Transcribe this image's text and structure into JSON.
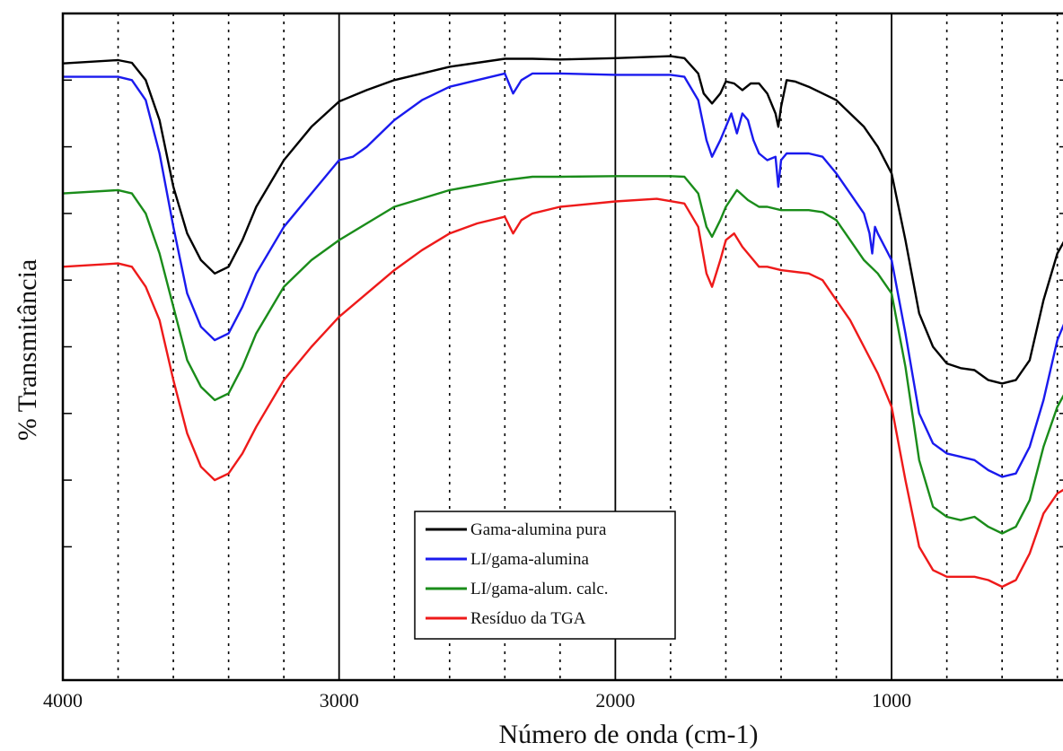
{
  "chart_data": {
    "type": "line",
    "xlabel": "Número de onda (cm-1)",
    "ylabel": "% Transmitância",
    "x_reversed": true,
    "xlim": [
      4000,
      360
    ],
    "ylim": [
      0,
      100
    ],
    "x_ticks": [
      4000,
      3000,
      2000,
      1000
    ],
    "x_tick_labels": [
      "4000",
      "3000",
      "2000",
      "1000"
    ],
    "x_minor_dotted": [
      3800,
      3600,
      3400,
      3200,
      2800,
      2600,
      2400,
      2200,
      1800,
      1600,
      1400,
      1200,
      800,
      600,
      400
    ],
    "y_ticks": [
      20,
      30,
      40,
      50,
      60,
      70,
      80,
      90
    ],
    "grid": "vertical",
    "legend_position": "center-bottom",
    "series": [
      {
        "name": "Gama-alumina pura",
        "color": "#000000",
        "points": [
          [
            4000,
            92.5
          ],
          [
            3800,
            93.0
          ],
          [
            3750,
            92.6
          ],
          [
            3700,
            90.0
          ],
          [
            3650,
            84.0
          ],
          [
            3600,
            74.0
          ],
          [
            3550,
            67.0
          ],
          [
            3500,
            63.0
          ],
          [
            3450,
            61.0
          ],
          [
            3400,
            62.0
          ],
          [
            3350,
            66.0
          ],
          [
            3300,
            71.0
          ],
          [
            3200,
            78.0
          ],
          [
            3100,
            83.0
          ],
          [
            3000,
            86.8
          ],
          [
            2900,
            88.5
          ],
          [
            2800,
            90.0
          ],
          [
            2600,
            92.0
          ],
          [
            2400,
            93.2
          ],
          [
            2300,
            93.2
          ],
          [
            2200,
            93.1
          ],
          [
            2000,
            93.3
          ],
          [
            1800,
            93.6
          ],
          [
            1750,
            93.3
          ],
          [
            1700,
            91.0
          ],
          [
            1680,
            88.0
          ],
          [
            1650,
            86.5
          ],
          [
            1620,
            88.0
          ],
          [
            1600,
            89.8
          ],
          [
            1570,
            89.5
          ],
          [
            1540,
            88.5
          ],
          [
            1510,
            89.5
          ],
          [
            1480,
            89.5
          ],
          [
            1450,
            88.0
          ],
          [
            1420,
            85.0
          ],
          [
            1410,
            83.0
          ],
          [
            1400,
            86.0
          ],
          [
            1380,
            90.0
          ],
          [
            1350,
            89.8
          ],
          [
            1300,
            89.0
          ],
          [
            1200,
            87.0
          ],
          [
            1100,
            83.0
          ],
          [
            1050,
            80.0
          ],
          [
            1000,
            76.0
          ],
          [
            950,
            66.0
          ],
          [
            900,
            55.0
          ],
          [
            850,
            50.0
          ],
          [
            800,
            47.5
          ],
          [
            750,
            46.8
          ],
          [
            700,
            46.5
          ],
          [
            650,
            45.0
          ],
          [
            600,
            44.5
          ],
          [
            550,
            45.0
          ],
          [
            500,
            48.0
          ],
          [
            450,
            57.0
          ],
          [
            400,
            64.0
          ],
          [
            360,
            67.0
          ]
        ]
      },
      {
        "name": "LI/gama-alumina",
        "color": "#1a1aee",
        "points": [
          [
            4000,
            90.5
          ],
          [
            3800,
            90.5
          ],
          [
            3750,
            90.0
          ],
          [
            3700,
            87.0
          ],
          [
            3650,
            79.0
          ],
          [
            3600,
            68.0
          ],
          [
            3550,
            58.0
          ],
          [
            3500,
            53.0
          ],
          [
            3450,
            51.0
          ],
          [
            3400,
            52.0
          ],
          [
            3350,
            56.0
          ],
          [
            3300,
            61.0
          ],
          [
            3200,
            68.0
          ],
          [
            3100,
            73.0
          ],
          [
            3000,
            78.0
          ],
          [
            2950,
            78.5
          ],
          [
            2900,
            80.0
          ],
          [
            2800,
            84.0
          ],
          [
            2700,
            87.0
          ],
          [
            2600,
            89.0
          ],
          [
            2500,
            90.0
          ],
          [
            2400,
            91.0
          ],
          [
            2370,
            88.0
          ],
          [
            2340,
            90.0
          ],
          [
            2300,
            91.0
          ],
          [
            2200,
            91.0
          ],
          [
            2000,
            90.8
          ],
          [
            1800,
            90.8
          ],
          [
            1750,
            90.5
          ],
          [
            1700,
            87.0
          ],
          [
            1670,
            81.0
          ],
          [
            1650,
            78.5
          ],
          [
            1620,
            81.0
          ],
          [
            1600,
            83.0
          ],
          [
            1580,
            85.0
          ],
          [
            1560,
            82.0
          ],
          [
            1540,
            85.0
          ],
          [
            1520,
            84.0
          ],
          [
            1500,
            81.0
          ],
          [
            1480,
            79.0
          ],
          [
            1450,
            78.0
          ],
          [
            1420,
            78.5
          ],
          [
            1410,
            74.0
          ],
          [
            1400,
            78.0
          ],
          [
            1380,
            79.0
          ],
          [
            1300,
            79.0
          ],
          [
            1250,
            78.5
          ],
          [
            1200,
            76.0
          ],
          [
            1150,
            73.0
          ],
          [
            1100,
            70.0
          ],
          [
            1080,
            67.0
          ],
          [
            1070,
            64.0
          ],
          [
            1060,
            68.0
          ],
          [
            1050,
            67.0
          ],
          [
            1000,
            63.0
          ],
          [
            950,
            52.0
          ],
          [
            900,
            40.0
          ],
          [
            850,
            35.5
          ],
          [
            800,
            34.0
          ],
          [
            750,
            33.5
          ],
          [
            700,
            33.0
          ],
          [
            650,
            31.5
          ],
          [
            600,
            30.5
          ],
          [
            550,
            31.0
          ],
          [
            500,
            35.0
          ],
          [
            450,
            42.0
          ],
          [
            400,
            51.0
          ],
          [
            360,
            55.0
          ]
        ]
      },
      {
        "name": "LI/gama-alum. calc.",
        "color": "#1a8c1a",
        "points": [
          [
            4000,
            73.0
          ],
          [
            3800,
            73.5
          ],
          [
            3750,
            73.0
          ],
          [
            3700,
            70.0
          ],
          [
            3650,
            64.0
          ],
          [
            3600,
            56.0
          ],
          [
            3550,
            48.0
          ],
          [
            3500,
            44.0
          ],
          [
            3450,
            42.0
          ],
          [
            3400,
            43.0
          ],
          [
            3350,
            47.0
          ],
          [
            3300,
            52.0
          ],
          [
            3200,
            59.0
          ],
          [
            3100,
            63.0
          ],
          [
            3000,
            66.0
          ],
          [
            2900,
            68.5
          ],
          [
            2800,
            71.0
          ],
          [
            2600,
            73.5
          ],
          [
            2400,
            75.0
          ],
          [
            2300,
            75.5
          ],
          [
            2200,
            75.5
          ],
          [
            2000,
            75.6
          ],
          [
            1800,
            75.6
          ],
          [
            1750,
            75.5
          ],
          [
            1700,
            73.0
          ],
          [
            1670,
            68.0
          ],
          [
            1650,
            66.5
          ],
          [
            1620,
            69.0
          ],
          [
            1600,
            71.0
          ],
          [
            1560,
            73.5
          ],
          [
            1520,
            72.0
          ],
          [
            1480,
            71.0
          ],
          [
            1450,
            71.0
          ],
          [
            1400,
            70.5
          ],
          [
            1300,
            70.5
          ],
          [
            1250,
            70.2
          ],
          [
            1200,
            69.0
          ],
          [
            1150,
            66.0
          ],
          [
            1100,
            63.0
          ],
          [
            1050,
            61.0
          ],
          [
            1000,
            58.0
          ],
          [
            950,
            47.0
          ],
          [
            900,
            33.0
          ],
          [
            850,
            26.0
          ],
          [
            800,
            24.5
          ],
          [
            750,
            24.0
          ],
          [
            700,
            24.5
          ],
          [
            650,
            23.0
          ],
          [
            600,
            22.0
          ],
          [
            550,
            23.0
          ],
          [
            500,
            27.0
          ],
          [
            450,
            35.0
          ],
          [
            400,
            41.0
          ],
          [
            360,
            44.0
          ]
        ]
      },
      {
        "name": "Resíduo da TGA",
        "color": "#ee1a1a",
        "points": [
          [
            4000,
            62.0
          ],
          [
            3800,
            62.5
          ],
          [
            3750,
            62.0
          ],
          [
            3700,
            59.0
          ],
          [
            3650,
            54.0
          ],
          [
            3600,
            45.0
          ],
          [
            3550,
            37.0
          ],
          [
            3500,
            32.0
          ],
          [
            3450,
            30.0
          ],
          [
            3400,
            31.0
          ],
          [
            3350,
            34.0
          ],
          [
            3300,
            38.0
          ],
          [
            3200,
            45.0
          ],
          [
            3100,
            50.0
          ],
          [
            3000,
            54.5
          ],
          [
            2900,
            58.0
          ],
          [
            2800,
            61.5
          ],
          [
            2700,
            64.5
          ],
          [
            2600,
            67.0
          ],
          [
            2500,
            68.5
          ],
          [
            2400,
            69.5
          ],
          [
            2370,
            67.0
          ],
          [
            2340,
            69.0
          ],
          [
            2300,
            70.0
          ],
          [
            2200,
            71.0
          ],
          [
            2000,
            71.8
          ],
          [
            1850,
            72.2
          ],
          [
            1750,
            71.5
          ],
          [
            1700,
            68.0
          ],
          [
            1670,
            61.0
          ],
          [
            1650,
            59.0
          ],
          [
            1620,
            63.0
          ],
          [
            1600,
            66.0
          ],
          [
            1570,
            67.0
          ],
          [
            1540,
            65.0
          ],
          [
            1500,
            63.0
          ],
          [
            1480,
            62.0
          ],
          [
            1450,
            62.0
          ],
          [
            1400,
            61.5
          ],
          [
            1300,
            61.0
          ],
          [
            1250,
            60.0
          ],
          [
            1200,
            57.0
          ],
          [
            1150,
            54.0
          ],
          [
            1100,
            50.0
          ],
          [
            1050,
            46.0
          ],
          [
            1000,
            41.0
          ],
          [
            950,
            30.0
          ],
          [
            900,
            20.0
          ],
          [
            850,
            16.5
          ],
          [
            800,
            15.5
          ],
          [
            750,
            15.5
          ],
          [
            700,
            15.5
          ],
          [
            650,
            15.0
          ],
          [
            600,
            14.0
          ],
          [
            550,
            15.0
          ],
          [
            500,
            19.0
          ],
          [
            450,
            25.0
          ],
          [
            400,
            28.0
          ],
          [
            360,
            29.0
          ]
        ]
      }
    ]
  }
}
